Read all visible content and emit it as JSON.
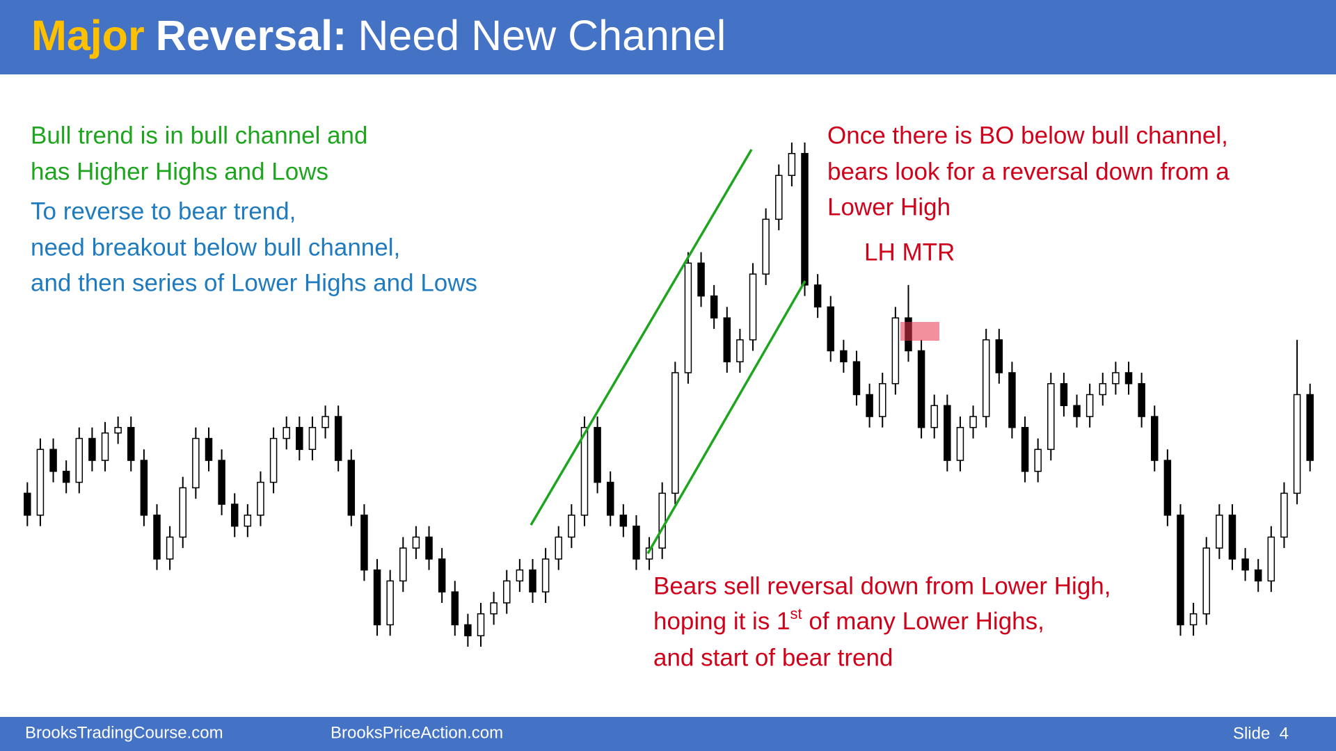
{
  "header": {
    "title": {
      "word1": "Major",
      "word2": "Reversal:",
      "rest": "Need New Channel"
    }
  },
  "notes": {
    "bull": [
      "Bull trend is in bull channel and",
      "has Higher Highs and Lows"
    ],
    "reverse": [
      "To reverse to bear trend,",
      "need breakout below bull channel,",
      "and then series of Lower Highs and Lows"
    ],
    "bears_look": [
      "Once there is BO below bull channel,",
      "bears look for a reversal down from a",
      "Lower High"
    ],
    "lh_mtr": "LH MTR",
    "bears_sell": {
      "line1": "Bears sell reversal down from Lower High,",
      "line2": {
        "before": "hoping it is 1",
        "sup": "st",
        "after": " of many Lower Highs,"
      },
      "line3": "and start of bear trend"
    }
  },
  "footer": {
    "left": "BrooksTradingCourse.com",
    "middle": "BrooksPriceAction.com",
    "slide": "Slide  4"
  },
  "chart_data": {
    "type": "candlestick",
    "open": [
      34,
      30,
      42,
      38,
      36,
      44,
      40,
      45,
      46,
      40,
      30,
      22,
      26,
      35,
      44,
      40,
      32,
      28,
      30,
      36,
      44,
      46,
      42,
      46,
      48,
      40,
      30,
      20,
      10,
      18,
      24,
      26,
      22,
      16,
      10,
      8,
      12,
      14,
      18,
      20,
      16,
      22,
      26,
      30,
      46,
      36,
      30,
      28,
      22,
      24,
      34,
      56,
      76,
      70,
      66,
      58,
      62,
      74,
      84,
      92,
      96,
      72,
      68,
      60,
      58,
      52,
      48,
      54,
      66,
      60,
      46,
      50,
      40,
      46,
      48,
      62,
      56,
      46,
      38,
      42,
      54,
      50,
      48,
      52,
      54,
      56,
      54,
      48,
      40,
      30,
      10,
      12,
      24,
      30,
      22,
      20,
      18,
      26,
      34,
      52
    ],
    "high": [
      36,
      44,
      44,
      40,
      46,
      46,
      47,
      48,
      48,
      42,
      32,
      28,
      37,
      46,
      46,
      42,
      34,
      32,
      38,
      46,
      48,
      48,
      48,
      50,
      50,
      42,
      32,
      22,
      20,
      26,
      28,
      28,
      24,
      18,
      12,
      14,
      16,
      20,
      22,
      22,
      24,
      28,
      32,
      48,
      48,
      38,
      32,
      30,
      26,
      36,
      58,
      78,
      78,
      72,
      68,
      64,
      76,
      86,
      94,
      98,
      98,
      74,
      70,
      62,
      60,
      54,
      56,
      68,
      72,
      62,
      52,
      52,
      48,
      50,
      64,
      64,
      58,
      48,
      44,
      56,
      56,
      52,
      54,
      56,
      58,
      58,
      56,
      50,
      42,
      32,
      14,
      26,
      32,
      32,
      24,
      22,
      28,
      36,
      62,
      54
    ],
    "low": [
      28,
      28,
      36,
      34,
      34,
      38,
      38,
      43,
      38,
      28,
      20,
      20,
      24,
      33,
      38,
      30,
      26,
      26,
      28,
      34,
      42,
      40,
      40,
      44,
      38,
      28,
      18,
      8,
      8,
      16,
      22,
      20,
      14,
      8,
      6,
      6,
      10,
      12,
      16,
      14,
      14,
      20,
      24,
      28,
      34,
      28,
      26,
      20,
      20,
      22,
      32,
      54,
      68,
      64,
      56,
      56,
      60,
      72,
      82,
      90,
      70,
      66,
      58,
      56,
      50,
      46,
      46,
      52,
      58,
      44,
      44,
      38,
      38,
      44,
      46,
      54,
      44,
      36,
      36,
      40,
      48,
      46,
      46,
      50,
      52,
      52,
      46,
      38,
      28,
      8,
      8,
      10,
      22,
      20,
      18,
      16,
      16,
      24,
      32,
      38
    ],
    "close": [
      30,
      42,
      38,
      36,
      44,
      40,
      45,
      46,
      40,
      30,
      22,
      26,
      35,
      44,
      40,
      32,
      28,
      30,
      36,
      44,
      46,
      42,
      46,
      48,
      40,
      30,
      20,
      10,
      18,
      24,
      26,
      22,
      16,
      10,
      8,
      12,
      14,
      18,
      20,
      16,
      22,
      26,
      30,
      46,
      36,
      30,
      28,
      22,
      24,
      34,
      56,
      76,
      70,
      66,
      58,
      62,
      74,
      84,
      92,
      96,
      72,
      68,
      60,
      58,
      52,
      48,
      54,
      66,
      60,
      46,
      50,
      40,
      46,
      48,
      62,
      56,
      46,
      38,
      42,
      54,
      50,
      48,
      52,
      54,
      56,
      54,
      48,
      40,
      30,
      10,
      12,
      24,
      30,
      22,
      20,
      18,
      26,
      34,
      52,
      40
    ],
    "up_color": "#ffffff",
    "down_color": "#000000"
  }
}
